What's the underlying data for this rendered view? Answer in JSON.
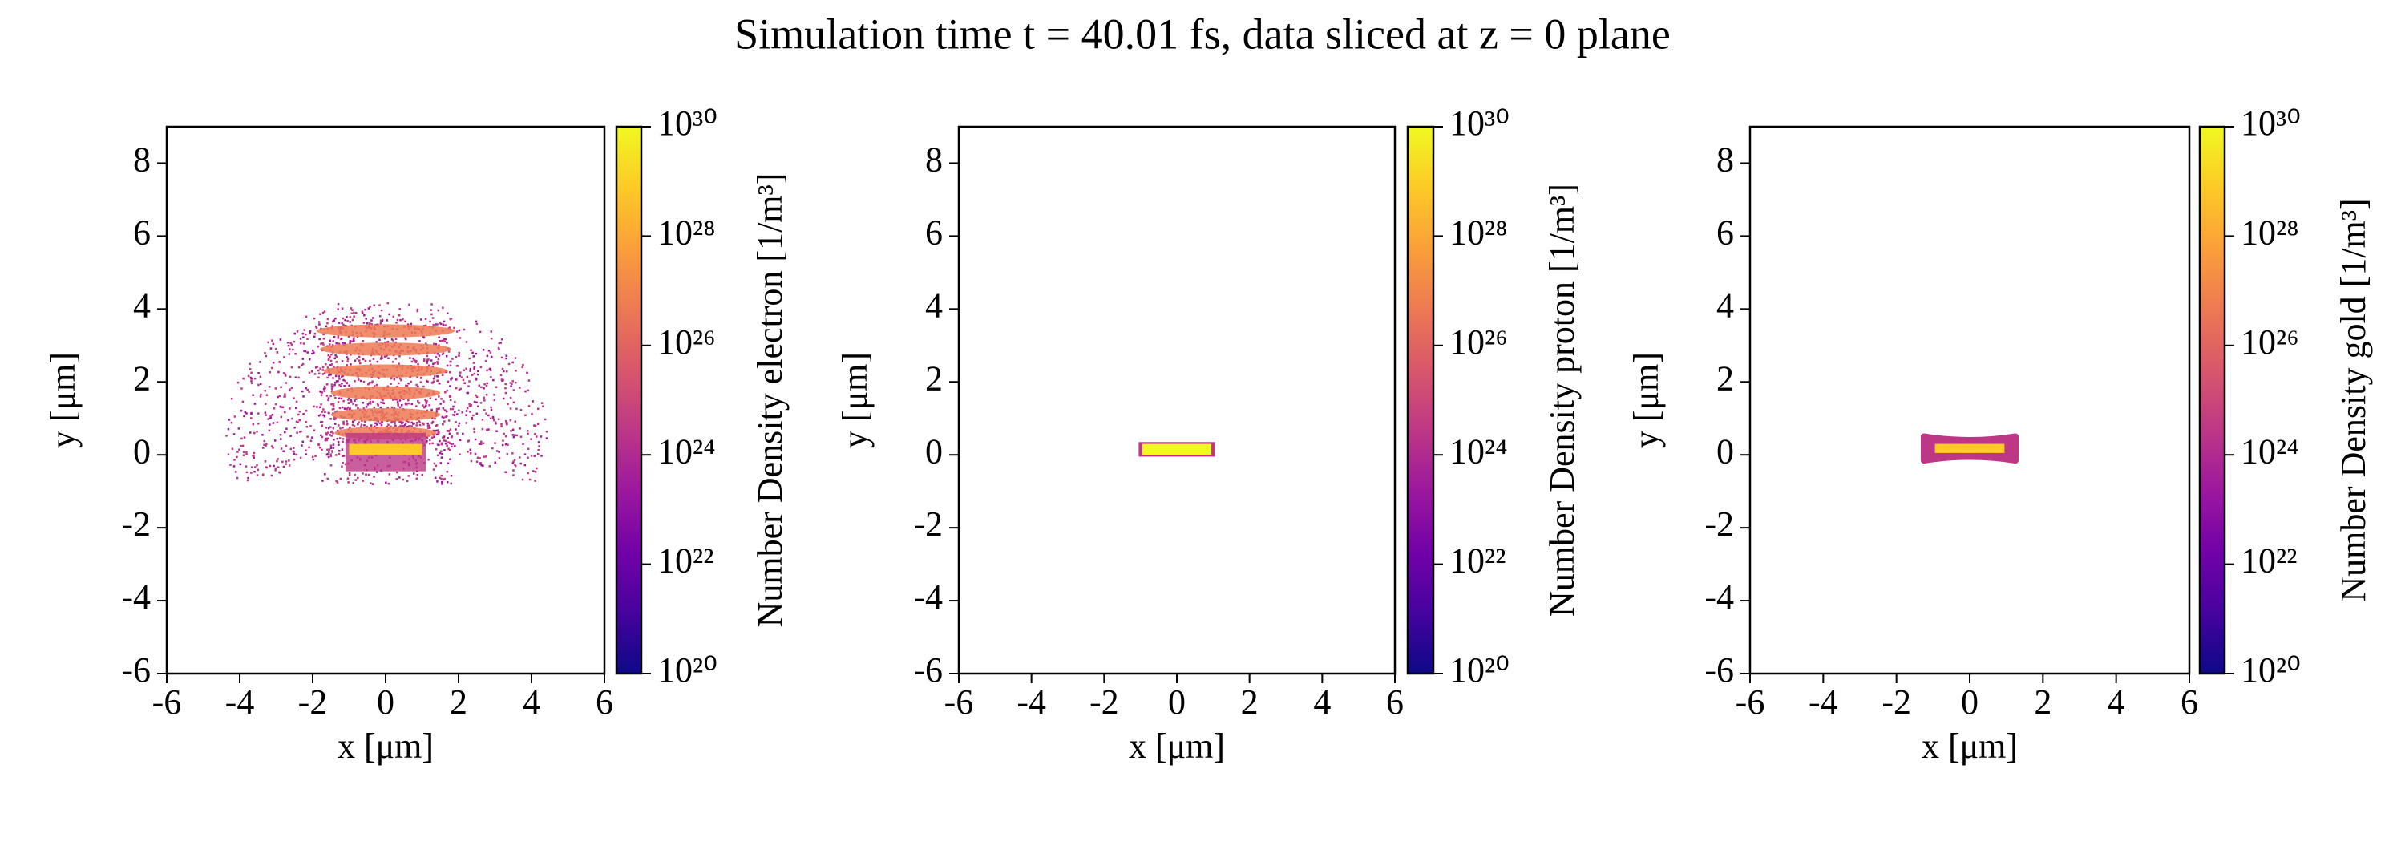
{
  "title": "Simulation time t = 40.01 fs, data sliced at z = 0 plane",
  "chart_data": [
    {
      "type": "heatmap",
      "species": "electron",
      "xlabel": "x [μm]",
      "ylabel": "y [μm]",
      "xlim": [
        -6,
        6
      ],
      "ylim": [
        -6,
        9
      ],
      "xticks": [
        -6,
        -4,
        -2,
        0,
        2,
        4,
        6
      ],
      "yticks": [
        -6,
        -4,
        -2,
        0,
        2,
        4,
        6,
        8
      ],
      "colorbar": {
        "label": "Number Density electron [1/m³]",
        "log": true,
        "lim": [
          1e+20,
          1e+30
        ],
        "ticks": [
          {
            "value": 1e+20,
            "label": "10²⁰"
          },
          {
            "value": 1e+22,
            "label": "10²²"
          },
          {
            "value": 1e+24,
            "label": "10²⁴"
          },
          {
            "value": 1e+26,
            "label": "10²⁶"
          },
          {
            "value": 1e+28,
            "label": "10²⁸"
          },
          {
            "value": 1e+30,
            "label": "10³⁰"
          }
        ],
        "colors": [
          "#0d0887",
          "#46039f",
          "#7201a8",
          "#9c179e",
          "#bd3786",
          "#d8576b",
          "#ed7953",
          "#fb9f3a",
          "#fdca26",
          "#f0f921"
        ]
      }
    },
    {
      "type": "heatmap",
      "species": "proton",
      "xlabel": "x [μm]",
      "ylabel": "y [μm]",
      "xlim": [
        -6,
        6
      ],
      "ylim": [
        -6,
        9
      ],
      "xticks": [
        -6,
        -4,
        -2,
        0,
        2,
        4,
        6
      ],
      "yticks": [
        -6,
        -4,
        -2,
        0,
        2,
        4,
        6,
        8
      ],
      "colorbar": {
        "label": "Number Density proton [1/m³]",
        "log": true,
        "lim": [
          1e+20,
          1e+30
        ],
        "ticks": [
          {
            "value": 1e+20,
            "label": "10²⁰"
          },
          {
            "value": 1e+22,
            "label": "10²²"
          },
          {
            "value": 1e+24,
            "label": "10²⁴"
          },
          {
            "value": 1e+26,
            "label": "10²⁶"
          },
          {
            "value": 1e+28,
            "label": "10²⁸"
          },
          {
            "value": 1e+30,
            "label": "10³⁰"
          }
        ],
        "colors": [
          "#0d0887",
          "#46039f",
          "#7201a8",
          "#9c179e",
          "#bd3786",
          "#d8576b",
          "#ed7953",
          "#fb9f3a",
          "#fdca26",
          "#f0f921"
        ]
      }
    },
    {
      "type": "heatmap",
      "species": "gold",
      "xlabel": "x [μm]",
      "ylabel": "y [μm]",
      "xlim": [
        -6,
        6
      ],
      "ylim": [
        -6,
        9
      ],
      "xticks": [
        -6,
        -4,
        -2,
        0,
        2,
        4,
        6
      ],
      "yticks": [
        -6,
        -4,
        -2,
        0,
        2,
        4,
        6,
        8
      ],
      "colorbar": {
        "label": "Number Density gold [1/m³]",
        "log": true,
        "lim": [
          1e+20,
          1e+30
        ],
        "ticks": [
          {
            "value": 1e+20,
            "label": "10²⁰"
          },
          {
            "value": 1e+22,
            "label": "10²²"
          },
          {
            "value": 1e+24,
            "label": "10²⁴"
          },
          {
            "value": 1e+26,
            "label": "10²⁶"
          },
          {
            "value": 1e+28,
            "label": "10²⁸"
          },
          {
            "value": 1e+30,
            "label": "10³⁰"
          }
        ],
        "colors": [
          "#0d0887",
          "#46039f",
          "#7201a8",
          "#9c179e",
          "#bd3786",
          "#d8576b",
          "#ed7953",
          "#fb9f3a",
          "#fdca26",
          "#f0f921"
        ]
      }
    }
  ]
}
